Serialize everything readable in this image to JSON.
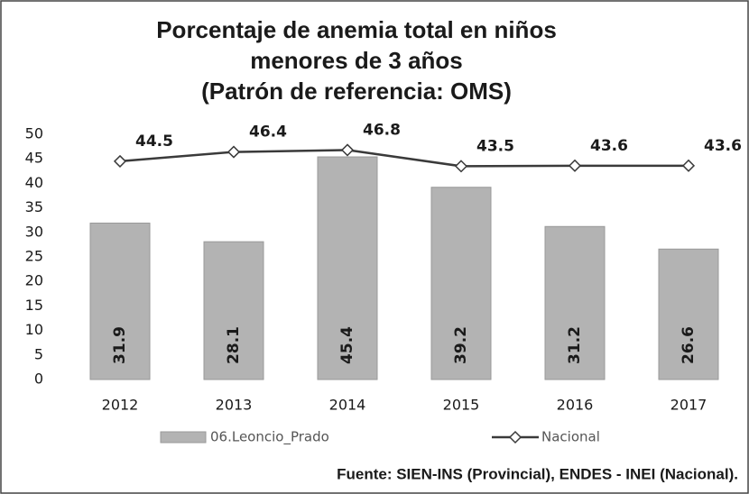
{
  "chart_data": {
    "type": "combo",
    "title": [
      "Porcentaje de anemia total en niños",
      "menores de 3 años",
      "(Patrón de referencia: OMS)"
    ],
    "categories": [
      "2012",
      "2013",
      "2014",
      "2015",
      "2016",
      "2017"
    ],
    "series": [
      {
        "name": "06.Leoncio_Prado",
        "mark": "bar",
        "color": "#b3b3b3",
        "values": [
          31.9,
          28.1,
          45.4,
          39.2,
          31.2,
          26.6
        ]
      },
      {
        "name": "Nacional",
        "mark": "line",
        "color": "#3a3a3a",
        "values": [
          44.5,
          46.4,
          46.8,
          43.5,
          43.6,
          43.6
        ]
      }
    ],
    "ylim": [
      0,
      50
    ],
    "yticks": [
      0,
      5,
      10,
      15,
      20,
      25,
      30,
      35,
      40,
      45,
      50
    ],
    "grid": false,
    "legend": "bottom",
    "source": "Fuente: SIEN-INS (Provincial), ENDES - INEI (Nacional)."
  }
}
